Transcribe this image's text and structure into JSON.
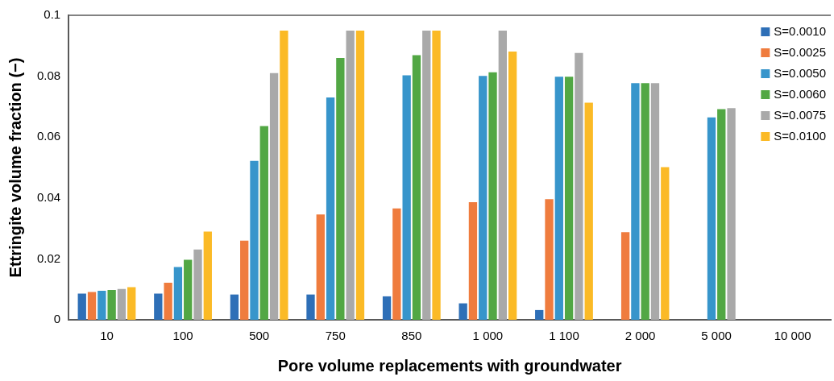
{
  "chart_data": {
    "type": "bar",
    "xlabel": "Pore volume replacements with groundwater",
    "ylabel": "Ettringite volume fraction (−)",
    "categories": [
      "10",
      "100",
      "500",
      "750",
      "850",
      "1 000",
      "1 100",
      "2 000",
      "5 000",
      "10 000"
    ],
    "series": [
      {
        "name": "S=0.0010",
        "color": "#2e6fb7",
        "values": [
          0.0086,
          0.0086,
          0.0083,
          0.0083,
          0.0077,
          0.0054,
          0.0032,
          null,
          null,
          null
        ]
      },
      {
        "name": "S=0.0025",
        "color": "#ef7c3e",
        "values": [
          0.0091,
          0.0122,
          0.026,
          0.0346,
          0.0366,
          0.0386,
          0.0396,
          0.0288,
          null,
          null
        ]
      },
      {
        "name": "S=0.0050",
        "color": "#3795cb",
        "values": [
          0.0095,
          0.0173,
          0.0522,
          0.073,
          0.0803,
          0.0801,
          0.0798,
          0.0777,
          0.0665,
          null
        ]
      },
      {
        "name": "S=0.0060",
        "color": "#52a744",
        "values": [
          0.0098,
          0.0197,
          0.0636,
          0.086,
          0.0869,
          0.0813,
          0.0798,
          0.0777,
          0.0692,
          null
        ]
      },
      {
        "name": "S=0.0075",
        "color": "#a9a9a9",
        "values": [
          0.0101,
          0.0231,
          0.081,
          0.095,
          0.095,
          0.095,
          0.0876,
          0.0777,
          0.0695,
          null
        ]
      },
      {
        "name": "S=0.0100",
        "color": "#fbba26",
        "values": [
          0.0107,
          0.029,
          0.095,
          0.095,
          0.095,
          0.0881,
          0.0713,
          0.0501,
          null,
          null
        ]
      }
    ],
    "ylim": [
      0,
      0.1
    ],
    "yticks": [
      0,
      0.02,
      0.04,
      0.06,
      0.08,
      0.1
    ],
    "grid": false,
    "legend": "top right"
  }
}
